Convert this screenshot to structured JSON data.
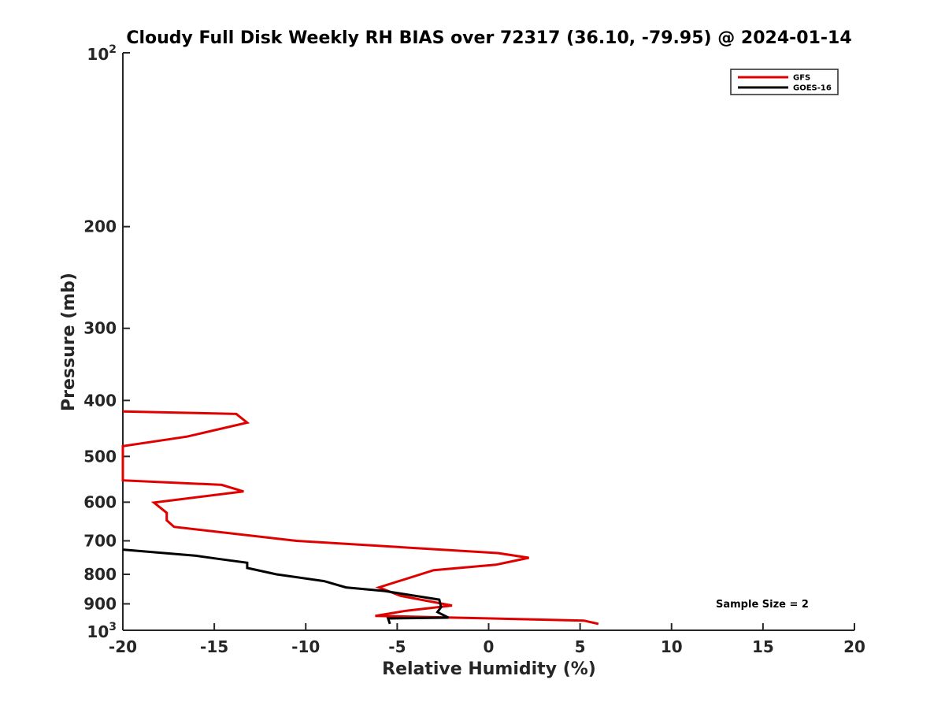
{
  "chart_data": {
    "type": "line",
    "title": "Cloudy Full Disk Weekly RH BIAS over 72317 (36.10, -79.95) @ 2024-01-14",
    "xlabel": "Relative Humidity (%)",
    "ylabel": "Pressure (mb)",
    "xlim": [
      -20,
      20
    ],
    "ylim": [
      100,
      1000
    ],
    "yscale": "log",
    "y_reversed": true,
    "x_ticks": [
      -20,
      -15,
      -10,
      -5,
      0,
      5,
      10,
      15,
      20
    ],
    "x_tick_labels": [
      "-20",
      "-15",
      "-10",
      "-5",
      "0",
      "5",
      "10",
      "15",
      "20"
    ],
    "y_ticks": [
      200,
      300,
      400,
      500,
      600,
      700,
      800,
      900
    ],
    "y_tick_labels": [
      "200",
      "300",
      "400",
      "500",
      "600",
      "700",
      "800",
      "900"
    ],
    "y_ends": {
      "base": "10",
      "top_exp": "2",
      "bottom_exp": "3"
    },
    "grid": false,
    "legend_position": "top-right",
    "annotation": "Sample Size = 2",
    "series": [
      {
        "name": "GFS",
        "color": "#e00000",
        "points": [
          [
            6.0,
            975
          ],
          [
            5.2,
            962
          ],
          [
            -2.3,
            950
          ],
          [
            -6.2,
            944
          ],
          [
            -4.5,
            925
          ],
          [
            -2.0,
            906
          ],
          [
            -4.8,
            872
          ],
          [
            -6.0,
            843
          ],
          [
            -3.0,
            787
          ],
          [
            0.4,
            770
          ],
          [
            2.2,
            749
          ],
          [
            0.5,
            735
          ],
          [
            -10.5,
            700
          ],
          [
            -17.2,
            662
          ],
          [
            -17.6,
            645
          ],
          [
            -17.6,
            626
          ],
          [
            -18.3,
            601
          ],
          [
            -13.4,
            575
          ],
          [
            -14.6,
            560
          ],
          [
            -20.0,
            550
          ],
          [
            -20.0,
            480
          ],
          [
            -16.5,
            462
          ],
          [
            -13.2,
            437
          ],
          [
            -13.8,
            422
          ],
          [
            -20.0,
            418
          ]
        ]
      },
      {
        "name": "GOES-16",
        "color": "#000000",
        "points": [
          [
            -5.4,
            975
          ],
          [
            -5.5,
            954
          ],
          [
            -2.2,
            951
          ],
          [
            -2.8,
            930
          ],
          [
            -2.6,
            912
          ],
          [
            -2.7,
            885
          ],
          [
            -5.7,
            855
          ],
          [
            -7.8,
            843
          ],
          [
            -9.0,
            822
          ],
          [
            -11.6,
            800
          ],
          [
            -13.2,
            780
          ],
          [
            -13.2,
            764
          ],
          [
            -14.8,
            752
          ],
          [
            -16.0,
            743
          ],
          [
            -20.0,
            725
          ]
        ]
      }
    ]
  }
}
